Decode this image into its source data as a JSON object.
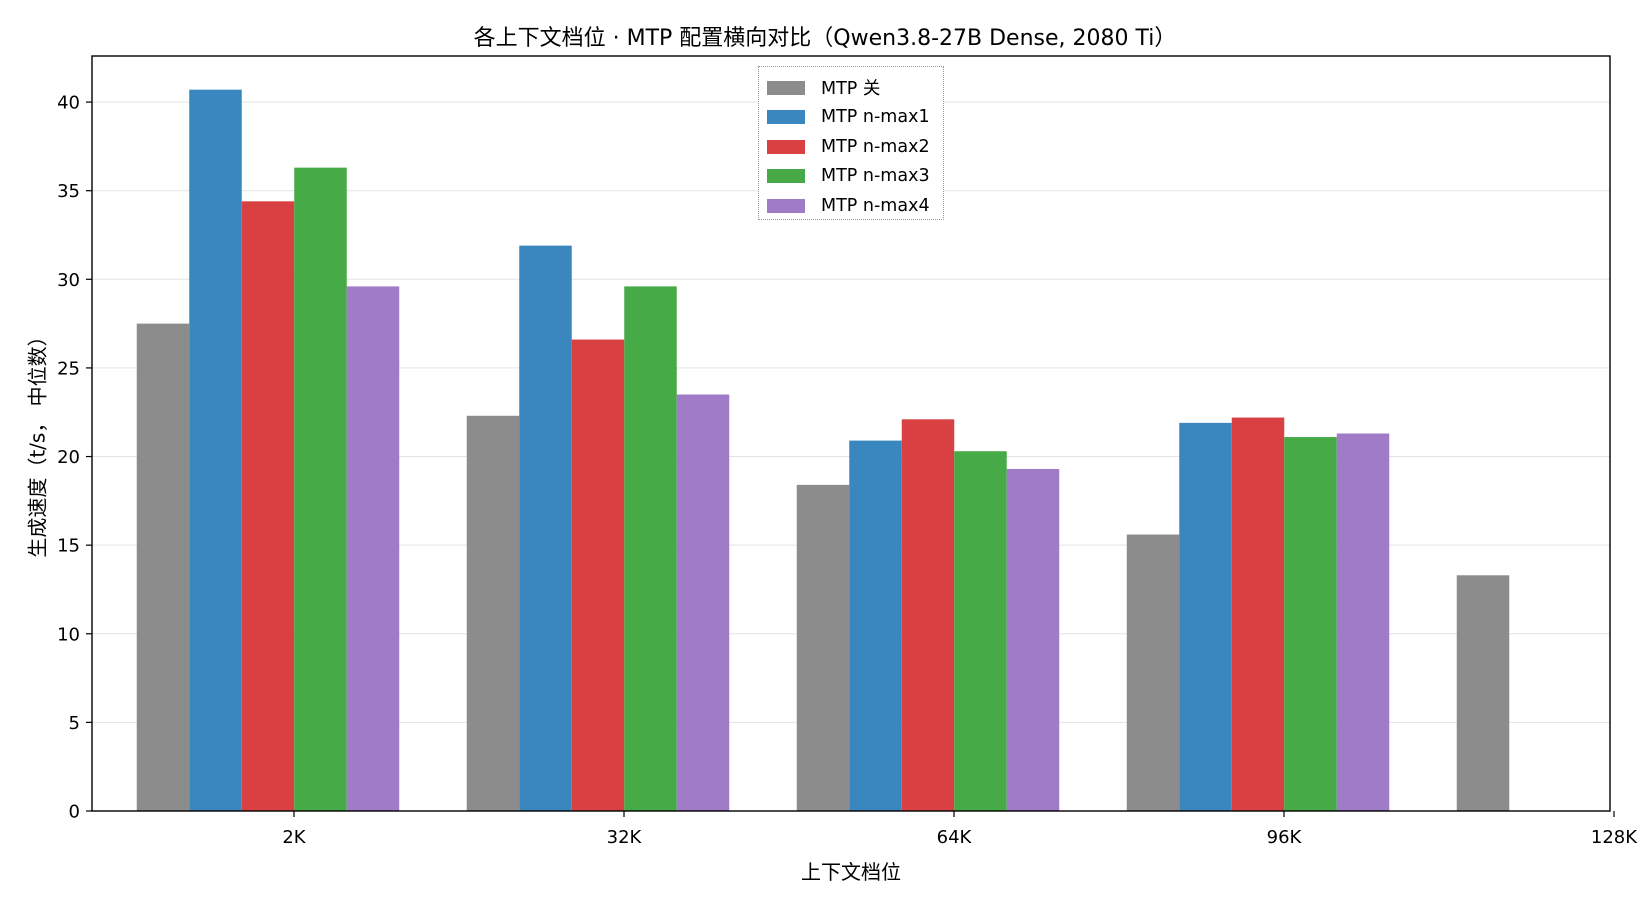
{
  "chart_data": {
    "type": "bar",
    "title": "各上下文档位 · MTP 配置横向对比（Qwen3.8-27B Dense, 2080 Ti）",
    "xlabel": "上下文档位",
    "ylabel": "生成速度（t/s， 中位数）",
    "categories": [
      "2K",
      "32K",
      "64K",
      "96K",
      "128K"
    ],
    "ylim": [
      0,
      42.6
    ],
    "yticks": [
      0,
      5,
      10,
      15,
      20,
      25,
      30,
      35,
      40
    ],
    "grid": "y",
    "legend_position": "top-center",
    "series": [
      {
        "name": "MTP 关",
        "color": "#8c8c8c",
        "values": [
          27.5,
          22.3,
          18.4,
          15.6,
          13.3
        ]
      },
      {
        "name": "MTP n-max1",
        "color": "#3a87bf",
        "values": [
          40.7,
          31.9,
          20.9,
          21.9,
          null
        ]
      },
      {
        "name": "MTP n-max2",
        "color": "#d84042",
        "values": [
          34.4,
          26.6,
          22.1,
          22.2,
          null
        ]
      },
      {
        "name": "MTP n-max3",
        "color": "#46aa46",
        "values": [
          36.3,
          29.6,
          20.3,
          21.1,
          null
        ]
      },
      {
        "name": "MTP n-max4",
        "color": "#9f7bc8",
        "values": [
          29.6,
          23.5,
          19.3,
          21.3,
          null
        ]
      }
    ]
  }
}
